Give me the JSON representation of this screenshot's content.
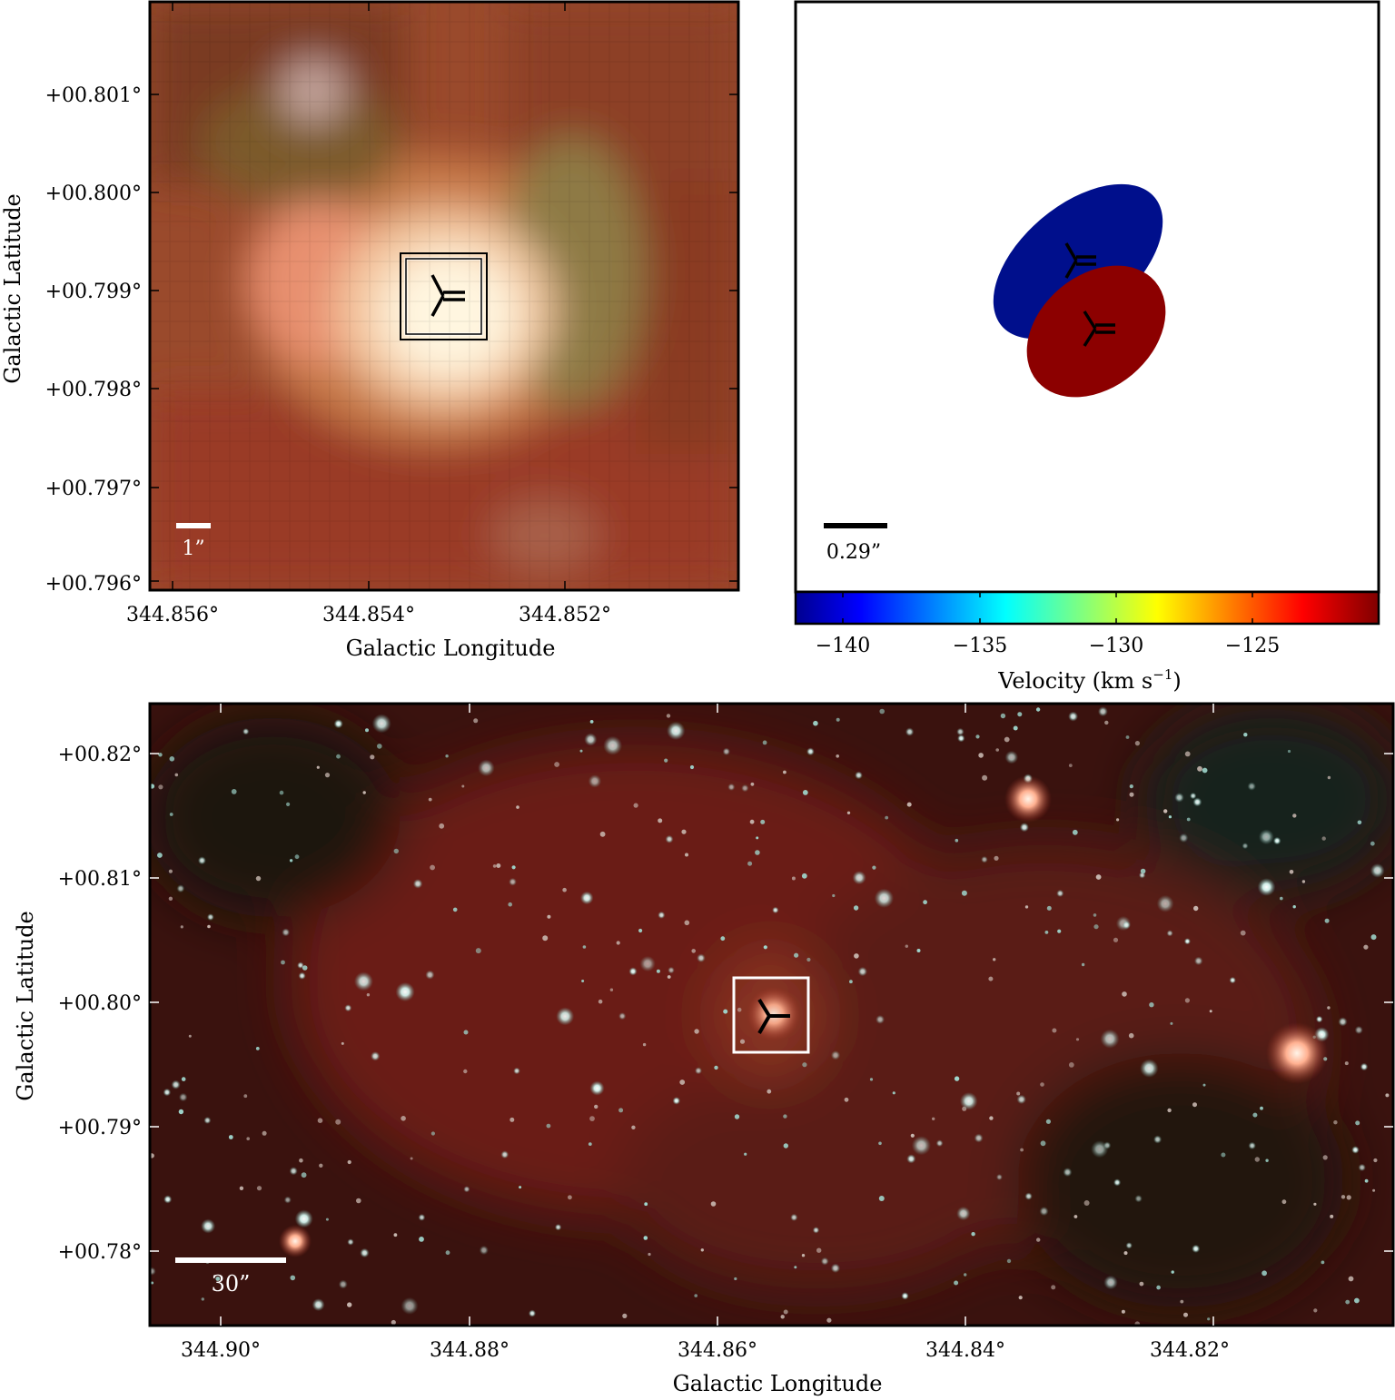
{
  "top_left": {
    "ylabel": "Galactic Latitude",
    "xlabel": "Galactic Longitude",
    "yticks": [
      "+00.801°",
      "+00.800°",
      "+00.799°",
      "+00.798°",
      "+00.797°",
      "+00.796°"
    ],
    "xticks": [
      "344.856°",
      "344.854°",
      "344.852°"
    ],
    "scalebar_label": "1”"
  },
  "top_right": {
    "scalebar_label": "0.29”",
    "colorbar_ticks": [
      "−140",
      "−135",
      "−130",
      "−125"
    ],
    "colorbar_label_main": "Velocity (km s",
    "colorbar_label_exp": "−1",
    "colorbar_label_close": ")",
    "colors": {
      "blueshifted": "#000f8c",
      "redshifted": "#8c0000"
    }
  },
  "bottom": {
    "ylabel": "Galactic Latitude",
    "xlabel": "Galactic Longitude",
    "yticks": [
      "+00.82°",
      "+00.81°",
      "+00.80°",
      "+00.79°",
      "+00.78°"
    ],
    "xticks": [
      "344.90°",
      "344.88°",
      "344.86°",
      "344.84°",
      "344.82°"
    ],
    "scalebar_label": "30”"
  }
}
